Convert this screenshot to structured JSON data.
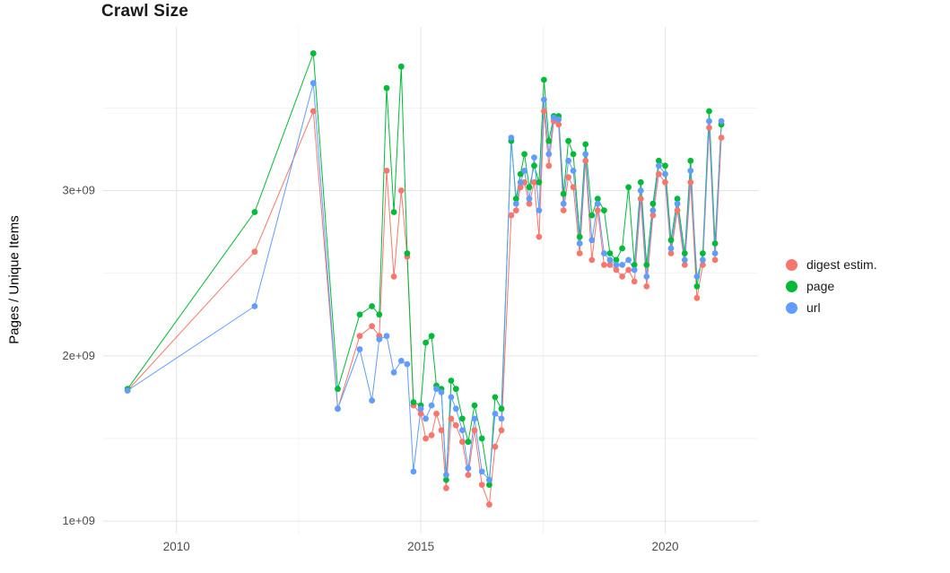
{
  "page": {
    "background": "#ffffff"
  },
  "chart_data": {
    "type": "scatter",
    "style": "points connected by lines (ggplot-style)",
    "title": "Crawl Size",
    "xlabel": "",
    "ylabel": "Pages / Unique Items",
    "x_ticks": [
      2010,
      2015,
      2020
    ],
    "x_tick_labels": [
      "2010",
      "2015",
      "2020"
    ],
    "x_minor": [
      2012.5,
      2017.5
    ],
    "y_ticks": [
      1,
      2,
      3
    ],
    "y_tick_labels": [
      "1e+09",
      "2e+09",
      "3e+09"
    ],
    "y_minor": [
      1.5,
      2.5,
      3.5
    ],
    "x_range": [
      2008.5,
      2021.9
    ],
    "y_range": [
      0.925,
      3.99
    ],
    "y_values_unit": "1e9 (billions of pages / unique items)",
    "grid": "major and minor light-gray gridlines on white background",
    "legend_position": "right",
    "colors": {
      "digest": "#F8766D",
      "page": "#00BA38",
      "url": "#619CFF",
      "grid_major": "#e5e5e5",
      "grid_minor": "#f2f2f2",
      "tick_text": "#4d4d4d"
    },
    "x": [
      2009.0,
      2011.6,
      2012.8,
      2013.3,
      2013.75,
      2014.0,
      2014.15,
      2014.3,
      2014.45,
      2014.6,
      2014.72,
      2014.85,
      2015.0,
      2015.1,
      2015.22,
      2015.32,
      2015.42,
      2015.52,
      2015.62,
      2015.72,
      2015.85,
      2015.97,
      2016.1,
      2016.25,
      2016.4,
      2016.52,
      2016.65,
      2016.85,
      2016.95,
      2017.04,
      2017.12,
      2017.22,
      2017.32,
      2017.42,
      2017.52,
      2017.62,
      2017.72,
      2017.82,
      2017.92,
      2018.02,
      2018.12,
      2018.25,
      2018.37,
      2018.5,
      2018.62,
      2018.75,
      2018.87,
      2019.0,
      2019.12,
      2019.25,
      2019.37,
      2019.5,
      2019.62,
      2019.75,
      2019.87,
      2020.0,
      2020.12,
      2020.25,
      2020.4,
      2020.52,
      2020.65,
      2020.77,
      2020.9,
      2021.02,
      2021.15
    ],
    "series": [
      {
        "key": "digest",
        "name": "digest estim.",
        "color": "#F8766D",
        "values": [
          1.79,
          2.63,
          3.48,
          1.68,
          2.12,
          2.18,
          2.12,
          3.12,
          2.48,
          3.0,
          2.6,
          1.7,
          1.65,
          1.5,
          1.52,
          1.65,
          1.55,
          1.2,
          1.62,
          1.58,
          1.48,
          1.28,
          1.55,
          1.22,
          1.1,
          1.45,
          1.55,
          2.85,
          2.88,
          3.02,
          3.05,
          2.92,
          3.05,
          2.72,
          3.48,
          3.15,
          3.42,
          3.4,
          2.88,
          3.08,
          3.02,
          2.62,
          3.18,
          2.58,
          2.88,
          2.55,
          2.55,
          2.52,
          2.48,
          2.52,
          2.45,
          2.95,
          2.42,
          2.85,
          3.1,
          3.05,
          2.62,
          2.88,
          2.55,
          3.05,
          2.35,
          2.55,
          3.38,
          2.58,
          3.32
        ]
      },
      {
        "key": "page",
        "name": "page",
        "color": "#00BA38",
        "values": [
          1.8,
          2.87,
          3.83,
          1.8,
          2.25,
          2.3,
          2.25,
          3.62,
          2.87,
          3.75,
          2.62,
          1.72,
          1.7,
          2.08,
          2.12,
          1.82,
          1.8,
          1.25,
          1.85,
          1.8,
          1.62,
          1.48,
          1.7,
          1.5,
          1.22,
          1.75,
          1.68,
          3.3,
          2.95,
          3.1,
          3.22,
          3.02,
          3.15,
          3.05,
          3.67,
          3.3,
          3.45,
          3.45,
          2.98,
          3.3,
          3.22,
          2.72,
          3.28,
          2.85,
          2.95,
          2.88,
          2.62,
          2.58,
          2.65,
          3.02,
          2.55,
          3.05,
          2.55,
          2.92,
          3.18,
          3.15,
          2.7,
          2.95,
          2.62,
          3.18,
          2.42,
          2.62,
          3.48,
          2.68,
          3.4
        ]
      },
      {
        "key": "url",
        "name": "url",
        "color": "#619CFF",
        "values": [
          1.79,
          2.3,
          3.65,
          1.68,
          2.04,
          1.73,
          2.1,
          2.12,
          1.9,
          1.97,
          1.95,
          1.3,
          1.68,
          1.62,
          1.7,
          1.8,
          1.78,
          1.28,
          1.75,
          1.68,
          1.55,
          1.32,
          1.62,
          1.3,
          1.25,
          1.65,
          1.62,
          3.32,
          2.92,
          3.05,
          3.12,
          2.95,
          3.2,
          2.88,
          3.55,
          3.22,
          3.44,
          3.43,
          2.92,
          3.18,
          3.12,
          2.68,
          3.22,
          2.7,
          2.92,
          2.62,
          2.58,
          2.55,
          2.55,
          2.58,
          2.52,
          3.0,
          2.48,
          2.88,
          3.15,
          3.1,
          2.65,
          2.92,
          2.58,
          3.12,
          2.48,
          2.58,
          3.42,
          2.62,
          3.42
        ]
      }
    ]
  }
}
